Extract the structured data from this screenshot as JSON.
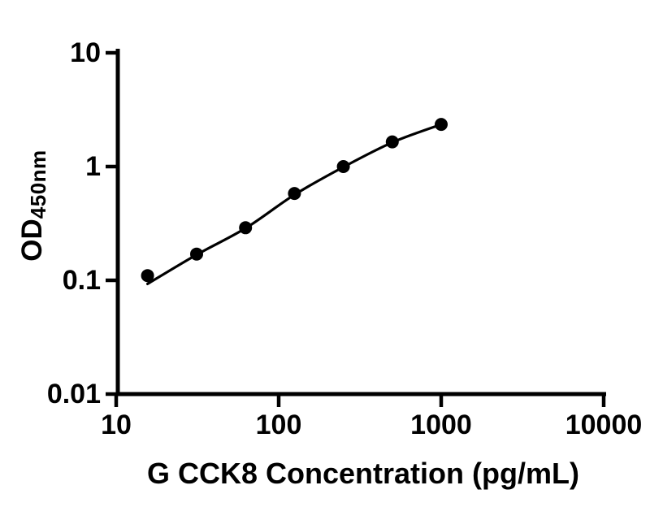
{
  "chart_data": {
    "type": "scatter",
    "title": "",
    "xlabel": "G CCK8 Concentration (pg/mL)",
    "ylabel": "OD450nm",
    "ylabel_main": "OD",
    "ylabel_sub": "450nm",
    "x_scale": "log10",
    "y_scale": "log10",
    "xlim": [
      10,
      10000
    ],
    "ylim": [
      0.01,
      10
    ],
    "grid": false,
    "legend": false,
    "x_ticks": [
      {
        "v": 10,
        "label": "10"
      },
      {
        "v": 100,
        "label": "100"
      },
      {
        "v": 1000,
        "label": "1000"
      },
      {
        "v": 10000,
        "label": "10000"
      }
    ],
    "y_ticks": [
      {
        "v": 10,
        "label": "10"
      },
      {
        "v": 1,
        "label": "1"
      },
      {
        "v": 0.1,
        "label": "0.1"
      },
      {
        "v": 0.01,
        "label": "0.01"
      }
    ],
    "series": [
      {
        "name": "standard-points",
        "marker": "filled-circle",
        "color": "#000000",
        "points": [
          {
            "x": 15.6,
            "y": 0.11
          },
          {
            "x": 31.25,
            "y": 0.17
          },
          {
            "x": 62.5,
            "y": 0.29
          },
          {
            "x": 125,
            "y": 0.58
          },
          {
            "x": 250,
            "y": 1.0
          },
          {
            "x": 500,
            "y": 1.65
          },
          {
            "x": 1000,
            "y": 2.35
          }
        ]
      }
    ],
    "fit_curve": {
      "color": "#000000",
      "points": [
        {
          "x": 15.6,
          "y": 0.093
        },
        {
          "x": 31.25,
          "y": 0.168
        },
        {
          "x": 62.5,
          "y": 0.287
        },
        {
          "x": 125,
          "y": 0.565
        },
        {
          "x": 250,
          "y": 0.99
        },
        {
          "x": 500,
          "y": 1.63
        },
        {
          "x": 1000,
          "y": 2.35
        }
      ]
    },
    "colors": {
      "ink": "#000000",
      "background": "#ffffff"
    }
  }
}
